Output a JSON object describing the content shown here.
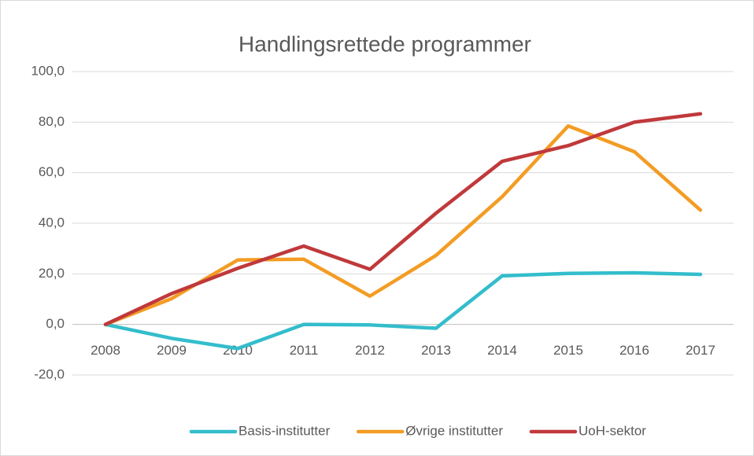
{
  "chart_data": {
    "type": "line",
    "title": "Handlingsrettede programmer",
    "categories": [
      "2008",
      "2009",
      "2010",
      "2011",
      "2012",
      "2013",
      "2014",
      "2015",
      "2016",
      "2017"
    ],
    "series": [
      {
        "name": "Basis-institutter",
        "color": "#33bdcc",
        "values": [
          0,
          -5.5,
          -9.5,
          0,
          -0.2,
          -1.5,
          19.2,
          20.2,
          20.4,
          19.8
        ]
      },
      {
        "name": "Øvrige institutter",
        "color": "#f39c24",
        "values": [
          0,
          10.2,
          25.5,
          25.8,
          11.2,
          27.3,
          50.5,
          78.5,
          68.3,
          45.2
        ]
      },
      {
        "name": "UoH-sektor",
        "color": "#c0393b",
        "values": [
          0,
          12.2,
          22.2,
          31.0,
          21.8,
          44.0,
          64.5,
          70.7,
          80.0,
          83.3
        ]
      }
    ],
    "ylim": [
      -20,
      100
    ],
    "yticks": [
      {
        "value": -20,
        "label": "-20,0"
      },
      {
        "value": 0,
        "label": "0,0"
      },
      {
        "value": 20,
        "label": "20,0"
      },
      {
        "value": 40,
        "label": "40,0"
      },
      {
        "value": 60,
        "label": "60,0"
      },
      {
        "value": 80,
        "label": "80,0"
      },
      {
        "value": 100,
        "label": "100,0"
      }
    ],
    "grid": true,
    "legend": "bottom"
  }
}
